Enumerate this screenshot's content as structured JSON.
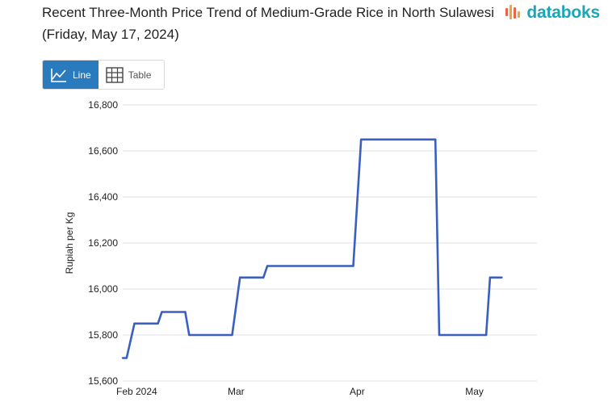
{
  "header": {
    "title": "Recent Three-Month Price Trend of Medium-Grade Rice in North Sulawesi (Friday, May 17, 2024)",
    "brand": "databoks",
    "brand_color": "#1aa6b7",
    "brand_icon_colors": [
      "#e7664b",
      "#f2a33a",
      "#e7664b",
      "#f2a33a"
    ]
  },
  "view_toggle": {
    "line_label": "Line",
    "table_label": "Table",
    "active": "line",
    "active_color": "#2a7bbd"
  },
  "chart_data": {
    "type": "line",
    "title": "",
    "ylabel": "Rupiah per Kg",
    "xlabel": "",
    "ylim": [
      15600,
      16800
    ],
    "xlim": [
      "2024-02-01",
      "2024-05-17"
    ],
    "y_ticks": [
      15600,
      15800,
      16000,
      16200,
      16400,
      16600,
      16800
    ],
    "y_tick_labels": [
      "15,600",
      "15,800",
      "16,000",
      "16,200",
      "16,400",
      "16,600",
      "16,800"
    ],
    "x_ticks": [
      {
        "date": "2024-02-01",
        "label": "Feb 2024"
      },
      {
        "date": "2024-03-01",
        "label": "Mar"
      },
      {
        "date": "2024-04-01",
        "label": "Apr"
      },
      {
        "date": "2024-05-01",
        "label": "May"
      }
    ],
    "grid": true,
    "line_color": "#3b5fc0",
    "series": [
      {
        "name": "",
        "points": [
          {
            "date": "2024-02-01",
            "value": 15700
          },
          {
            "date": "2024-02-02",
            "value": 15700
          },
          {
            "date": "2024-02-04",
            "value": 15850
          },
          {
            "date": "2024-02-10",
            "value": 15850
          },
          {
            "date": "2024-02-11",
            "value": 15900
          },
          {
            "date": "2024-02-17",
            "value": 15900
          },
          {
            "date": "2024-02-18",
            "value": 15800
          },
          {
            "date": "2024-02-29",
            "value": 15800
          },
          {
            "date": "2024-03-02",
            "value": 16050
          },
          {
            "date": "2024-03-08",
            "value": 16050
          },
          {
            "date": "2024-03-09",
            "value": 16100
          },
          {
            "date": "2024-03-31",
            "value": 16100
          },
          {
            "date": "2024-04-02",
            "value": 16650
          },
          {
            "date": "2024-04-21",
            "value": 16650
          },
          {
            "date": "2024-04-22",
            "value": 15800
          },
          {
            "date": "2024-05-04",
            "value": 15800
          },
          {
            "date": "2024-05-05",
            "value": 16050
          },
          {
            "date": "2024-05-08",
            "value": 16050
          }
        ]
      }
    ]
  }
}
